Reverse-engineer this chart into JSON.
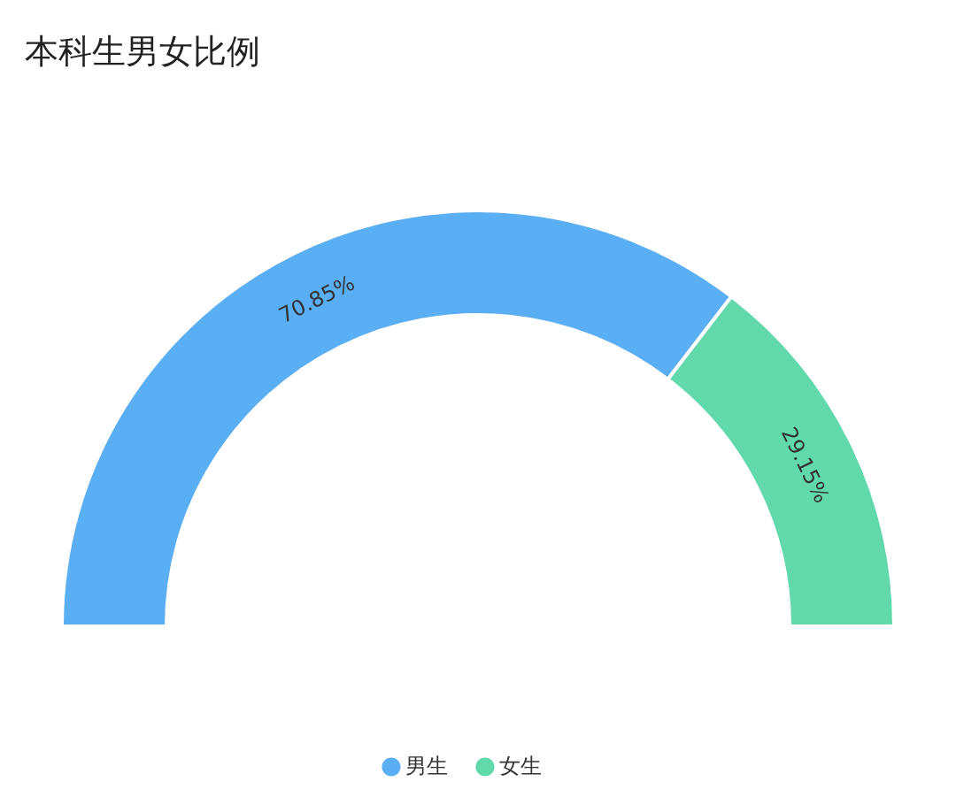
{
  "chart_data": {
    "type": "donut",
    "title": "本科生男女比例",
    "categories": [
      "男生",
      "女生"
    ],
    "values": [
      70.85,
      29.15
    ],
    "colors": [
      "#5aaef3",
      "#61d9ab"
    ],
    "value_labels": [
      "70.85%",
      "29.15%"
    ],
    "legend": "bottom"
  }
}
